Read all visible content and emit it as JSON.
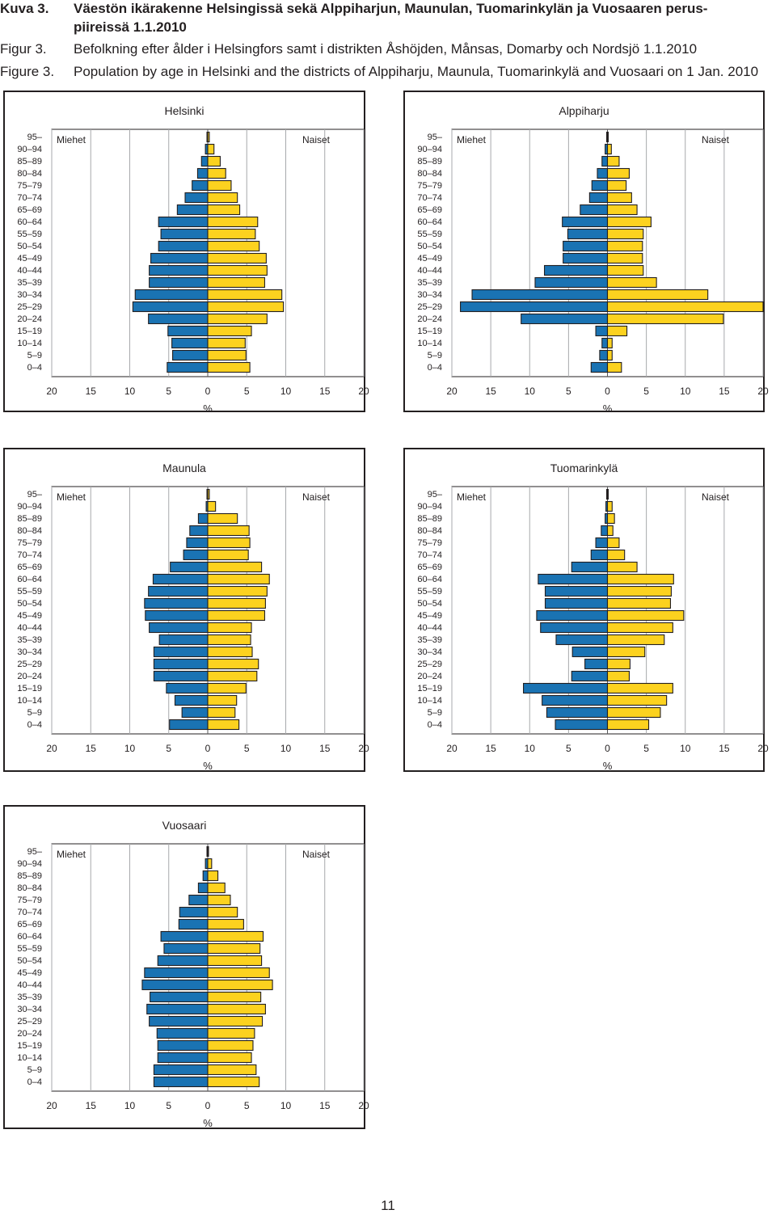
{
  "header": {
    "lines": [
      {
        "label": "Kuva 3.",
        "text": "Väestön ikärakenne Helsingissä sekä Alppiharjun, Maunulan, Tuomarinkylän ja Vuosaaren perus-",
        "bold": true
      },
      {
        "label": "",
        "text": "piireissä 1.1.2010",
        "bold": true
      },
      {
        "label": "Figur 3.",
        "text": "Befolkning efter ålder i Helsingfors samt i distrikten Åshöjden, Månsas, Domarby och Nordsjö 1.1.2010",
        "bold": false
      },
      {
        "label": "Figure 3.",
        "text": "Population by age in Helsinki and the districts of Alppiharju, Maunula, Tuomarinkylä and Vuosaari on 1 Jan. 2010",
        "bold": false
      }
    ]
  },
  "page_number": "11",
  "colors": {
    "men": "#1a73b3",
    "women": "#fcd21f",
    "outline": "#231f20",
    "grid": "#a7a9ac"
  },
  "chart_data": [
    {
      "type": "bar",
      "orientation": "horizontal-pyramid",
      "title": "Helsinki",
      "categories": [
        "95–",
        "90–94",
        "85–89",
        "80–84",
        "75–79",
        "70–74",
        "65–69",
        "60–64",
        "55–59",
        "50–54",
        "45–49",
        "40–44",
        "35–39",
        "30–34",
        "25–29",
        "20–24",
        "15–19",
        "10–14",
        "5–9",
        "0–4"
      ],
      "series": [
        {
          "name": "Miehet",
          "values": [
            0.1,
            0.3,
            0.8,
            1.3,
            2.0,
            2.9,
            3.9,
            6.3,
            6.0,
            6.3,
            7.3,
            7.5,
            7.5,
            9.3,
            9.6,
            7.6,
            5.1,
            4.6,
            4.5,
            5.2
          ]
        },
        {
          "name": "Naiset",
          "values": [
            0.2,
            0.8,
            1.6,
            2.3,
            3.0,
            3.8,
            4.1,
            6.4,
            6.1,
            6.6,
            7.5,
            7.6,
            7.3,
            9.5,
            9.7,
            7.6,
            5.6,
            4.8,
            4.9,
            5.4
          ]
        }
      ],
      "xlabel": "%",
      "xticks": [
        "20",
        "15",
        "10",
        "5",
        "0",
        "5",
        "10",
        "15",
        "20"
      ],
      "xlim": [
        -20,
        20
      ]
    },
    {
      "type": "bar",
      "orientation": "horizontal-pyramid",
      "title": "Alppiharju",
      "categories": [
        "95–",
        "90–94",
        "85–89",
        "80–84",
        "75–79",
        "70–74",
        "65–69",
        "60–64",
        "55–59",
        "50–54",
        "45–49",
        "40–44",
        "35–39",
        "30–34",
        "25–29",
        "20–24",
        "15–19",
        "10–14",
        "5–9",
        "0–4"
      ],
      "series": [
        {
          "name": "Miehet",
          "values": [
            0.1,
            0.3,
            0.7,
            1.3,
            2.0,
            2.3,
            3.5,
            5.8,
            5.1,
            5.7,
            5.7,
            8.1,
            9.3,
            17.4,
            18.9,
            11.1,
            1.5,
            0.7,
            1.0,
            2.1
          ]
        },
        {
          "name": "Naiset",
          "values": [
            0.1,
            0.5,
            1.5,
            2.8,
            2.4,
            3.1,
            3.8,
            5.6,
            4.6,
            4.5,
            4.5,
            4.6,
            6.3,
            12.9,
            20.0,
            14.9,
            2.5,
            0.6,
            0.6,
            1.8
          ]
        }
      ],
      "xlabel": "%",
      "xticks": [
        "20",
        "15",
        "10",
        "5",
        "0",
        "5",
        "10",
        "15",
        "20"
      ],
      "xlim": [
        -20,
        20
      ]
    },
    {
      "type": "bar",
      "orientation": "horizontal-pyramid",
      "title": "Maunula",
      "categories": [
        "95–",
        "90–94",
        "85–89",
        "80–84",
        "75–79",
        "70–74",
        "65–69",
        "60–64",
        "55–59",
        "50–54",
        "45–49",
        "40–44",
        "35–39",
        "30–34",
        "25–29",
        "20–24",
        "15–19",
        "10–14",
        "5–9",
        "0–4"
      ],
      "series": [
        {
          "name": "Miehet",
          "values": [
            0.1,
            0.2,
            1.2,
            2.3,
            2.7,
            3.1,
            4.8,
            7.0,
            7.6,
            8.1,
            8.0,
            7.5,
            6.2,
            6.9,
            6.9,
            6.9,
            5.3,
            4.2,
            3.3,
            4.9
          ]
        },
        {
          "name": "Naiset",
          "values": [
            0.2,
            1.0,
            3.8,
            5.3,
            5.4,
            5.2,
            6.9,
            7.9,
            7.6,
            7.4,
            7.3,
            5.6,
            5.5,
            5.7,
            6.5,
            6.3,
            4.9,
            3.7,
            3.5,
            4.0
          ]
        }
      ],
      "xlabel": "%",
      "xticks": [
        "20",
        "15",
        "10",
        "5",
        "0",
        "5",
        "10",
        "15",
        "20"
      ],
      "xlim": [
        -20,
        20
      ]
    },
    {
      "type": "bar",
      "orientation": "horizontal-pyramid",
      "title": "Tuomarinkylä",
      "categories": [
        "95–",
        "90–94",
        "85–89",
        "80–84",
        "75–79",
        "70–74",
        "65–69",
        "60–64",
        "55–59",
        "50–54",
        "45–49",
        "40–44",
        "35–39",
        "30–34",
        "25–29",
        "20–24",
        "15–19",
        "10–14",
        "5–9",
        "0–4"
      ],
      "series": [
        {
          "name": "Miehet",
          "values": [
            0.1,
            0.2,
            0.3,
            0.8,
            1.5,
            2.1,
            4.6,
            8.9,
            8.0,
            8.0,
            9.1,
            8.6,
            6.6,
            4.5,
            2.9,
            4.6,
            10.8,
            8.4,
            7.8,
            6.7
          ]
        },
        {
          "name": "Naiset",
          "values": [
            0.1,
            0.6,
            0.9,
            0.7,
            1.5,
            2.2,
            3.8,
            8.5,
            8.2,
            8.1,
            9.8,
            8.4,
            7.3,
            4.8,
            2.9,
            2.8,
            8.4,
            7.6,
            6.8,
            5.3
          ]
        }
      ],
      "xlabel": "%",
      "xticks": [
        "20",
        "15",
        "10",
        "5",
        "0",
        "5",
        "10",
        "15",
        "20"
      ],
      "xlim": [
        -20,
        20
      ]
    },
    {
      "type": "bar",
      "orientation": "horizontal-pyramid",
      "title": "Vuosaari",
      "categories": [
        "95–",
        "90–94",
        "85–89",
        "80–84",
        "75–79",
        "70–74",
        "65–69",
        "60–64",
        "55–59",
        "50–54",
        "45–49",
        "40–44",
        "35–39",
        "30–34",
        "25–29",
        "20–24",
        "15–19",
        "10–14",
        "5–9",
        "0–4"
      ],
      "series": [
        {
          "name": "Miehet",
          "values": [
            0.1,
            0.3,
            0.6,
            1.2,
            2.4,
            3.6,
            3.7,
            6.0,
            5.6,
            6.4,
            8.1,
            8.4,
            7.4,
            7.8,
            7.5,
            6.5,
            6.4,
            6.4,
            6.9,
            6.9
          ]
        },
        {
          "name": "Naiset",
          "values": [
            0.1,
            0.5,
            1.3,
            2.2,
            2.9,
            3.8,
            4.6,
            7.1,
            6.7,
            6.9,
            7.9,
            8.3,
            6.8,
            7.4,
            7.0,
            6.0,
            5.8,
            5.6,
            6.2,
            6.6
          ]
        }
      ],
      "xlabel": "%",
      "xticks": [
        "20",
        "15",
        "10",
        "5",
        "0",
        "5",
        "10",
        "15",
        "20"
      ],
      "xlim": [
        -20,
        20
      ]
    }
  ]
}
